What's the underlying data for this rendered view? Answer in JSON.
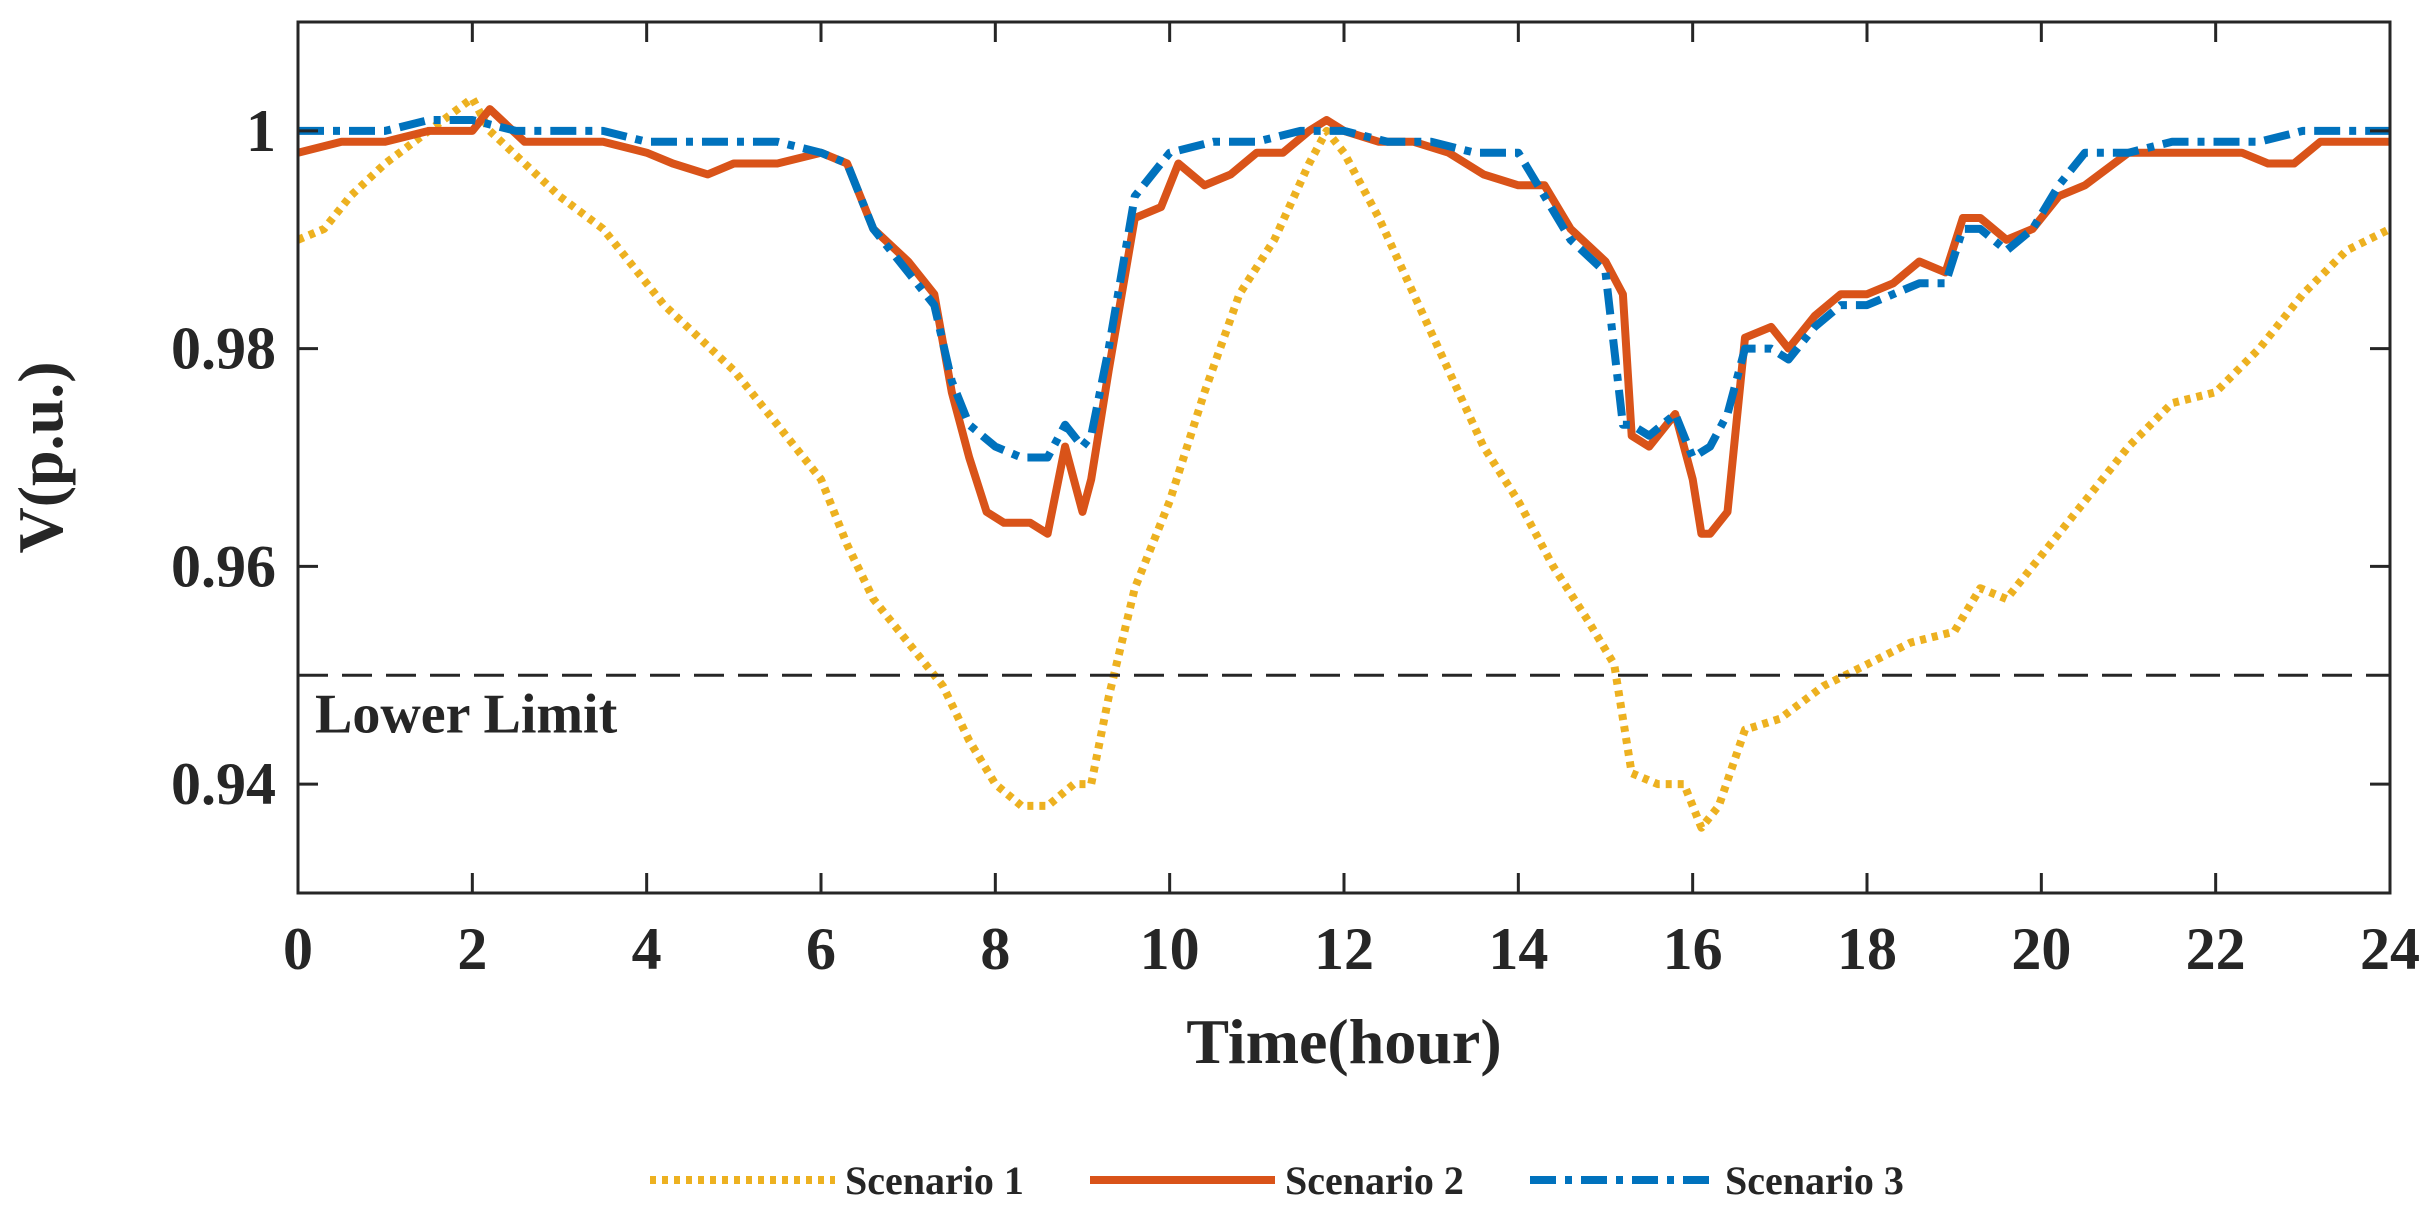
{
  "chart_data": {
    "type": "line",
    "title": "",
    "xlabel": "Time(hour)",
    "ylabel": "V(p.u.)",
    "xlim": [
      0,
      24
    ],
    "ylim": [
      0.93,
      1.01
    ],
    "x_ticks": [
      0,
      2,
      4,
      6,
      8,
      10,
      12,
      14,
      16,
      18,
      20,
      22,
      24
    ],
    "x_tick_labels": [
      "0",
      "2",
      "4",
      "6",
      "8",
      "10",
      "12",
      "14",
      "16",
      "18",
      "20",
      "22",
      "24"
    ],
    "y_ticks": [
      0.94,
      0.96,
      0.98,
      1.0
    ],
    "y_tick_labels": [
      "0.94",
      "0.96",
      "0.98",
      "1"
    ],
    "grid": false,
    "legend_position": "bottom",
    "reference_line": {
      "y": 0.95,
      "label": "Lower Limit",
      "color": "#262626"
    },
    "series": [
      {
        "name": "Scenario 1",
        "color": "#EDB120",
        "style": "dotted",
        "x": [
          0,
          0.3,
          0.6,
          1.0,
          1.5,
          2.0,
          2.2,
          2.6,
          3.0,
          3.5,
          3.8,
          4.2,
          4.6,
          5.0,
          5.5,
          6.0,
          6.3,
          6.6,
          7.0,
          7.4,
          7.7,
          8.0,
          8.3,
          8.6,
          8.9,
          9.1,
          9.3,
          9.6,
          10.0,
          10.4,
          10.8,
          11.2,
          11.6,
          11.8,
          12.0,
          12.4,
          12.8,
          13.2,
          13.6,
          14.0,
          14.4,
          14.8,
          15.1,
          15.3,
          15.6,
          15.9,
          16.1,
          16.3,
          16.6,
          17.0,
          17.5,
          18.0,
          18.5,
          19.0,
          19.3,
          19.6,
          20.0,
          20.5,
          21.0,
          21.5,
          22.0,
          22.5,
          23.0,
          23.5,
          24.0
        ],
        "values": [
          0.99,
          0.991,
          0.994,
          0.997,
          1.0,
          1.003,
          1.0,
          0.997,
          0.994,
          0.991,
          0.988,
          0.984,
          0.981,
          0.978,
          0.973,
          0.968,
          0.962,
          0.957,
          0.953,
          0.949,
          0.944,
          0.94,
          0.938,
          0.938,
          0.94,
          0.94,
          0.948,
          0.958,
          0.966,
          0.976,
          0.985,
          0.99,
          0.997,
          1.0,
          0.998,
          0.992,
          0.985,
          0.978,
          0.971,
          0.966,
          0.96,
          0.955,
          0.951,
          0.941,
          0.94,
          0.94,
          0.936,
          0.938,
          0.945,
          0.946,
          0.949,
          0.951,
          0.953,
          0.954,
          0.958,
          0.957,
          0.961,
          0.966,
          0.971,
          0.975,
          0.976,
          0.98,
          0.985,
          0.989,
          0.991
        ]
      },
      {
        "name": "Scenario 2",
        "color": "#D95319",
        "style": "solid",
        "x": [
          0,
          0.5,
          1.0,
          1.5,
          2.0,
          2.2,
          2.6,
          3.0,
          3.5,
          4.0,
          4.3,
          4.7,
          5.0,
          5.5,
          6.0,
          6.3,
          6.6,
          7.0,
          7.3,
          7.5,
          7.7,
          7.9,
          8.1,
          8.4,
          8.6,
          8.8,
          8.9,
          9.0,
          9.1,
          9.3,
          9.6,
          9.9,
          10.1,
          10.4,
          10.7,
          11.0,
          11.3,
          11.6,
          11.8,
          12.0,
          12.4,
          12.8,
          13.2,
          13.6,
          14.0,
          14.3,
          14.6,
          15.0,
          15.2,
          15.3,
          15.5,
          15.8,
          16.0,
          16.1,
          16.2,
          16.4,
          16.6,
          16.9,
          17.1,
          17.4,
          17.7,
          18.0,
          18.3,
          18.6,
          18.9,
          19.1,
          19.3,
          19.6,
          19.9,
          20.2,
          20.5,
          21.0,
          21.5,
          22.0,
          22.3,
          22.6,
          22.9,
          23.2,
          23.6,
          24.0
        ],
        "values": [
          0.998,
          0.999,
          0.999,
          1.0,
          1.0,
          1.002,
          0.999,
          0.999,
          0.999,
          0.998,
          0.997,
          0.996,
          0.997,
          0.997,
          0.998,
          0.997,
          0.991,
          0.988,
          0.985,
          0.976,
          0.97,
          0.965,
          0.964,
          0.964,
          0.963,
          0.971,
          0.968,
          0.965,
          0.968,
          0.978,
          0.992,
          0.993,
          0.997,
          0.995,
          0.996,
          0.998,
          0.998,
          1.0,
          1.001,
          1.0,
          0.999,
          0.999,
          0.998,
          0.996,
          0.995,
          0.995,
          0.991,
          0.988,
          0.985,
          0.972,
          0.971,
          0.974,
          0.968,
          0.963,
          0.963,
          0.965,
          0.981,
          0.982,
          0.98,
          0.983,
          0.985,
          0.985,
          0.986,
          0.988,
          0.987,
          0.992,
          0.992,
          0.99,
          0.991,
          0.994,
          0.995,
          0.998,
          0.998,
          0.998,
          0.998,
          0.997,
          0.997,
          0.999,
          0.999,
          0.999
        ]
      },
      {
        "name": "Scenario 3",
        "color": "#0072BD",
        "style": "dashdot",
        "x": [
          0,
          0.5,
          1.0,
          1.5,
          2.0,
          2.5,
          3.0,
          3.5,
          4.0,
          4.5,
          5.0,
          5.5,
          6.0,
          6.3,
          6.6,
          7.0,
          7.3,
          7.5,
          7.7,
          8.0,
          8.3,
          8.6,
          8.8,
          9.0,
          9.1,
          9.3,
          9.6,
          10.0,
          10.5,
          11.0,
          11.5,
          12.0,
          12.5,
          13.0,
          13.5,
          14.0,
          14.3,
          14.6,
          15.0,
          15.2,
          15.3,
          15.5,
          15.8,
          16.0,
          16.2,
          16.4,
          16.6,
          16.9,
          17.1,
          17.4,
          17.7,
          18.0,
          18.3,
          18.6,
          18.9,
          19.1,
          19.3,
          19.6,
          19.9,
          20.2,
          20.5,
          21.0,
          21.5,
          22.0,
          22.5,
          23.0,
          23.5,
          24.0
        ],
        "values": [
          1.0,
          1.0,
          1.0,
          1.001,
          1.001,
          1.0,
          1.0,
          1.0,
          0.999,
          0.999,
          0.999,
          0.999,
          0.998,
          0.997,
          0.991,
          0.987,
          0.984,
          0.977,
          0.973,
          0.971,
          0.97,
          0.97,
          0.973,
          0.971,
          0.972,
          0.98,
          0.994,
          0.998,
          0.999,
          0.999,
          1.0,
          1.0,
          0.999,
          0.999,
          0.998,
          0.998,
          0.994,
          0.99,
          0.987,
          0.973,
          0.973,
          0.972,
          0.974,
          0.97,
          0.971,
          0.974,
          0.98,
          0.98,
          0.979,
          0.982,
          0.984,
          0.984,
          0.985,
          0.986,
          0.986,
          0.991,
          0.991,
          0.989,
          0.991,
          0.995,
          0.998,
          0.998,
          0.999,
          0.999,
          0.999,
          1.0,
          1.0,
          1.0
        ]
      }
    ]
  }
}
